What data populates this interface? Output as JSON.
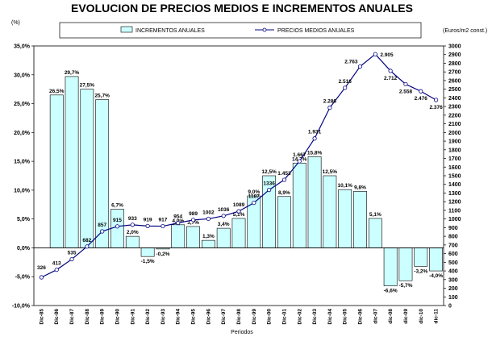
{
  "chart_data": {
    "type": "bar+line",
    "title": "EVOLUCION  DE PRECIOS MEDIOS E INCREMENTOS ANUALES",
    "left_axis_unit": "(%)",
    "right_axis_unit": "(Euros/m2 const.)",
    "xlabel": "Periodos",
    "legend_position": "top",
    "categories": [
      "Dic-85",
      "Dic-86",
      "Dic-87",
      "Dic-88",
      "Dic-89",
      "Dic-90",
      "Dic-91",
      "Dic-92",
      "Dic-93",
      "Dic-94",
      "Dic-95",
      "Dic-96",
      "Dic-97",
      "Dic-98",
      "Dic-99",
      "Dic-00",
      "Dic-01",
      "Dic-02",
      "Dic-03",
      "Dic-04",
      "Dic-05",
      "Dic-06",
      "dic-07",
      "dic-08",
      "dic-09",
      "dic-10",
      "dic-11"
    ],
    "y_left": {
      "ylim": [
        -10,
        35
      ],
      "ticks": [
        -10,
        -5,
        0,
        5,
        10,
        15,
        20,
        25,
        30,
        35
      ],
      "tick_labels": [
        "-10,0%",
        "-5,0%",
        "0,0%",
        "5,0%",
        "10,0%",
        "15,0%",
        "20,0%",
        "25,0%",
        "30,0%",
        "35,0%"
      ]
    },
    "y_right": {
      "ylim": [
        0,
        3000
      ],
      "ticks": [
        0,
        100,
        200,
        300,
        400,
        500,
        600,
        700,
        800,
        900,
        1000,
        1100,
        1200,
        1300,
        1400,
        1500,
        1600,
        1700,
        1800,
        1900,
        2000,
        2100,
        2200,
        2300,
        2400,
        2500,
        2600,
        2700,
        2800,
        2900,
        3000
      ]
    },
    "series": [
      {
        "name": "INCREMENTOS ANUALES",
        "kind": "bar",
        "axis": "left",
        "color": "#ccffff",
        "values": [
          null,
          26.5,
          29.7,
          27.5,
          25.7,
          6.7,
          2.0,
          -1.5,
          -0.2,
          4.0,
          3.7,
          1.3,
          3.4,
          5.1,
          9.0,
          12.5,
          8.9,
          14.7,
          15.8,
          12.5,
          10.1,
          9.8,
          5.1,
          -6.6,
          -5.7,
          -3.2,
          -4.0
        ],
        "labels": [
          "",
          "26,5%",
          "29,7%",
          "27,5%",
          "25,7%",
          "6,7%",
          "2,0%",
          "-1,5%",
          "-0,2%",
          "4,0%",
          "3,7%",
          "1,3%",
          "3,4%",
          "5,1%",
          "9,0%",
          "12,5%",
          "8,9%",
          "14,7%",
          "15,8%",
          "12,5%",
          "10,1%",
          "9,8%",
          "5,1%",
          "-6,6%",
          "-5,7%",
          "-3,2%",
          "-4,0%"
        ]
      },
      {
        "name": "PRECIOS MEDIOS ANUALES",
        "kind": "line",
        "axis": "right",
        "color": "#000080",
        "values": [
          326,
          413,
          535,
          682,
          857,
          915,
          933,
          919,
          917,
          954,
          989,
          1002,
          1036,
          1089,
          1187,
          1336,
          1453,
          1667,
          1931,
          2286,
          2516,
          2763,
          2905,
          2712,
          2558,
          2476,
          2376
        ],
        "labels": [
          "326",
          "413",
          "535",
          "682",
          "857",
          "915",
          "933",
          "919",
          "917",
          "954",
          "989",
          "1002",
          "1036",
          "1089",
          "1187",
          "1336",
          "1.453",
          "1.667",
          "1.931",
          "2.286",
          "2.516",
          "2.763",
          "2.905",
          "2.712",
          "2.558",
          "2.476",
          "2.376"
        ]
      }
    ]
  }
}
